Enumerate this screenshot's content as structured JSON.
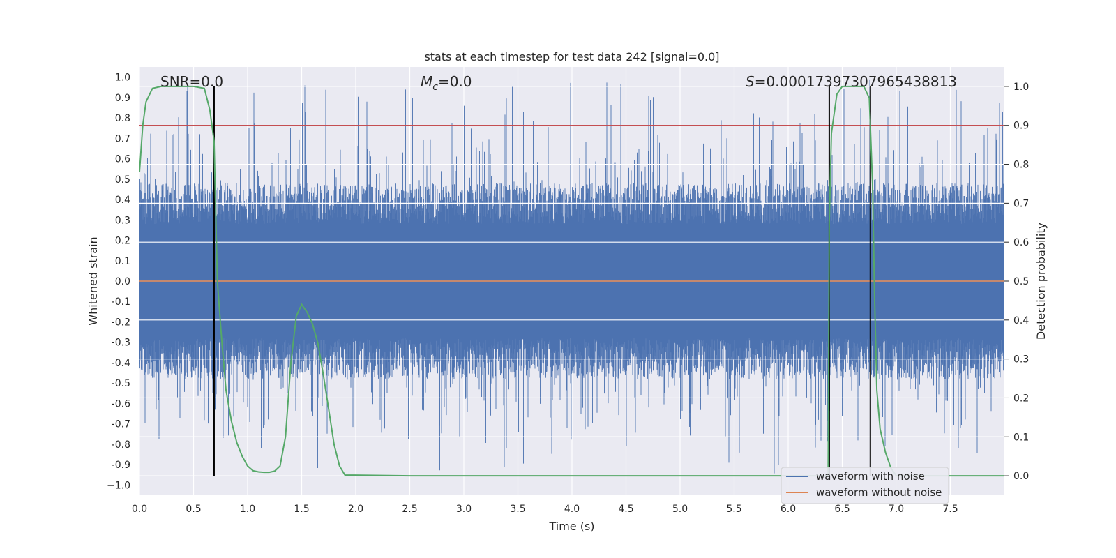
{
  "chart_data": {
    "type": "line",
    "title": "stats at each timestep for test data 242 [signal=0.0]",
    "xlabel": "Time (s)",
    "ylabel_left": "Whitened strain",
    "ylabel_right": "Detection probability",
    "xlim": [
      0.0,
      8.0
    ],
    "ylim_left": [
      -1.05,
      1.05
    ],
    "ylim_right": [
      -0.05,
      1.05
    ],
    "x_ticks": [
      "0.0",
      "0.5",
      "1.0",
      "1.5",
      "2.0",
      "2.5",
      "3.0",
      "3.5",
      "4.0",
      "4.5",
      "5.0",
      "5.5",
      "6.0",
      "6.5",
      "7.0",
      "7.5"
    ],
    "y_ticks_left": [
      "1.0",
      "0.9",
      "0.8",
      "0.7",
      "0.6",
      "0.5",
      "0.4",
      "0.3",
      "0.2",
      "0.1",
      "0.0",
      "-0.1",
      "-0.2",
      "-0.3",
      "-0.4",
      "-0.5",
      "-0.6",
      "-0.7",
      "-0.8",
      "-0.9",
      "−1.0"
    ],
    "y_ticks_right": [
      "1.0",
      "0.9",
      "0.8",
      "0.7",
      "0.6",
      "0.5",
      "0.4",
      "0.3",
      "0.2",
      "0.1",
      "0.0"
    ],
    "annotations": {
      "snr": "SNR=0.0",
      "mc_symbol": "M",
      "mc_sub": "c",
      "mc_value": "=0.0",
      "s_symbol": "S",
      "s_value": "=0.00017397307965438813"
    },
    "threshold": 0.9,
    "detection_boundaries_s": [
      0.69,
      6.38,
      6.76
    ],
    "series": [
      {
        "name": "waveform with noise",
        "color": "#4c72b0",
        "note": "dense noise, envelope approx ±0.45 with spikes up to ±1.0"
      },
      {
        "name": "waveform without noise",
        "color": "#dd8452",
        "values": "0.0 everywhere"
      },
      {
        "name": "detection probability",
        "color": "#55a868",
        "x": [
          0.0,
          0.03,
          0.06,
          0.12,
          0.2,
          0.3,
          0.4,
          0.5,
          0.6,
          0.65,
          0.69,
          0.72,
          0.76,
          0.8,
          0.85,
          0.9,
          0.95,
          1.0,
          1.05,
          1.1,
          1.15,
          1.2,
          1.25,
          1.3,
          1.35,
          1.4,
          1.45,
          1.5,
          1.55,
          1.6,
          1.65,
          1.7,
          1.75,
          1.8,
          1.85,
          1.9,
          2.5,
          3.5,
          4.5,
          5.5,
          6.3,
          6.37,
          6.38,
          6.4,
          6.45,
          6.5,
          6.6,
          6.7,
          6.75,
          6.78,
          6.8,
          6.82,
          6.85,
          6.9,
          6.95,
          7.0,
          7.5,
          8.0
        ],
        "y": [
          0.78,
          0.9,
          0.96,
          0.995,
          1.0,
          1.0,
          1.0,
          1.0,
          0.995,
          0.94,
          0.86,
          0.5,
          0.35,
          0.22,
          0.14,
          0.085,
          0.05,
          0.025,
          0.013,
          0.01,
          0.009,
          0.009,
          0.012,
          0.025,
          0.1,
          0.29,
          0.41,
          0.44,
          0.42,
          0.39,
          0.34,
          0.26,
          0.17,
          0.08,
          0.025,
          0.002,
          0.0,
          0.0,
          0.0,
          0.0,
          0.0,
          0.0,
          0.65,
          0.88,
          0.98,
          1.0,
          1.0,
          1.0,
          0.97,
          0.75,
          0.45,
          0.22,
          0.12,
          0.06,
          0.02,
          0.0,
          0.0,
          0.0
        ]
      }
    ],
    "legend": [
      "waveform with noise",
      "waveform without noise"
    ],
    "legend_position": "lower-right",
    "colors": {
      "plot_bg": "#eaeaf2",
      "grid": "#ffffff",
      "noise": "#4c72b0",
      "clean": "#dd8452",
      "prob": "#55a868",
      "threshold": "#c44e52",
      "boundary": "#000000"
    }
  }
}
